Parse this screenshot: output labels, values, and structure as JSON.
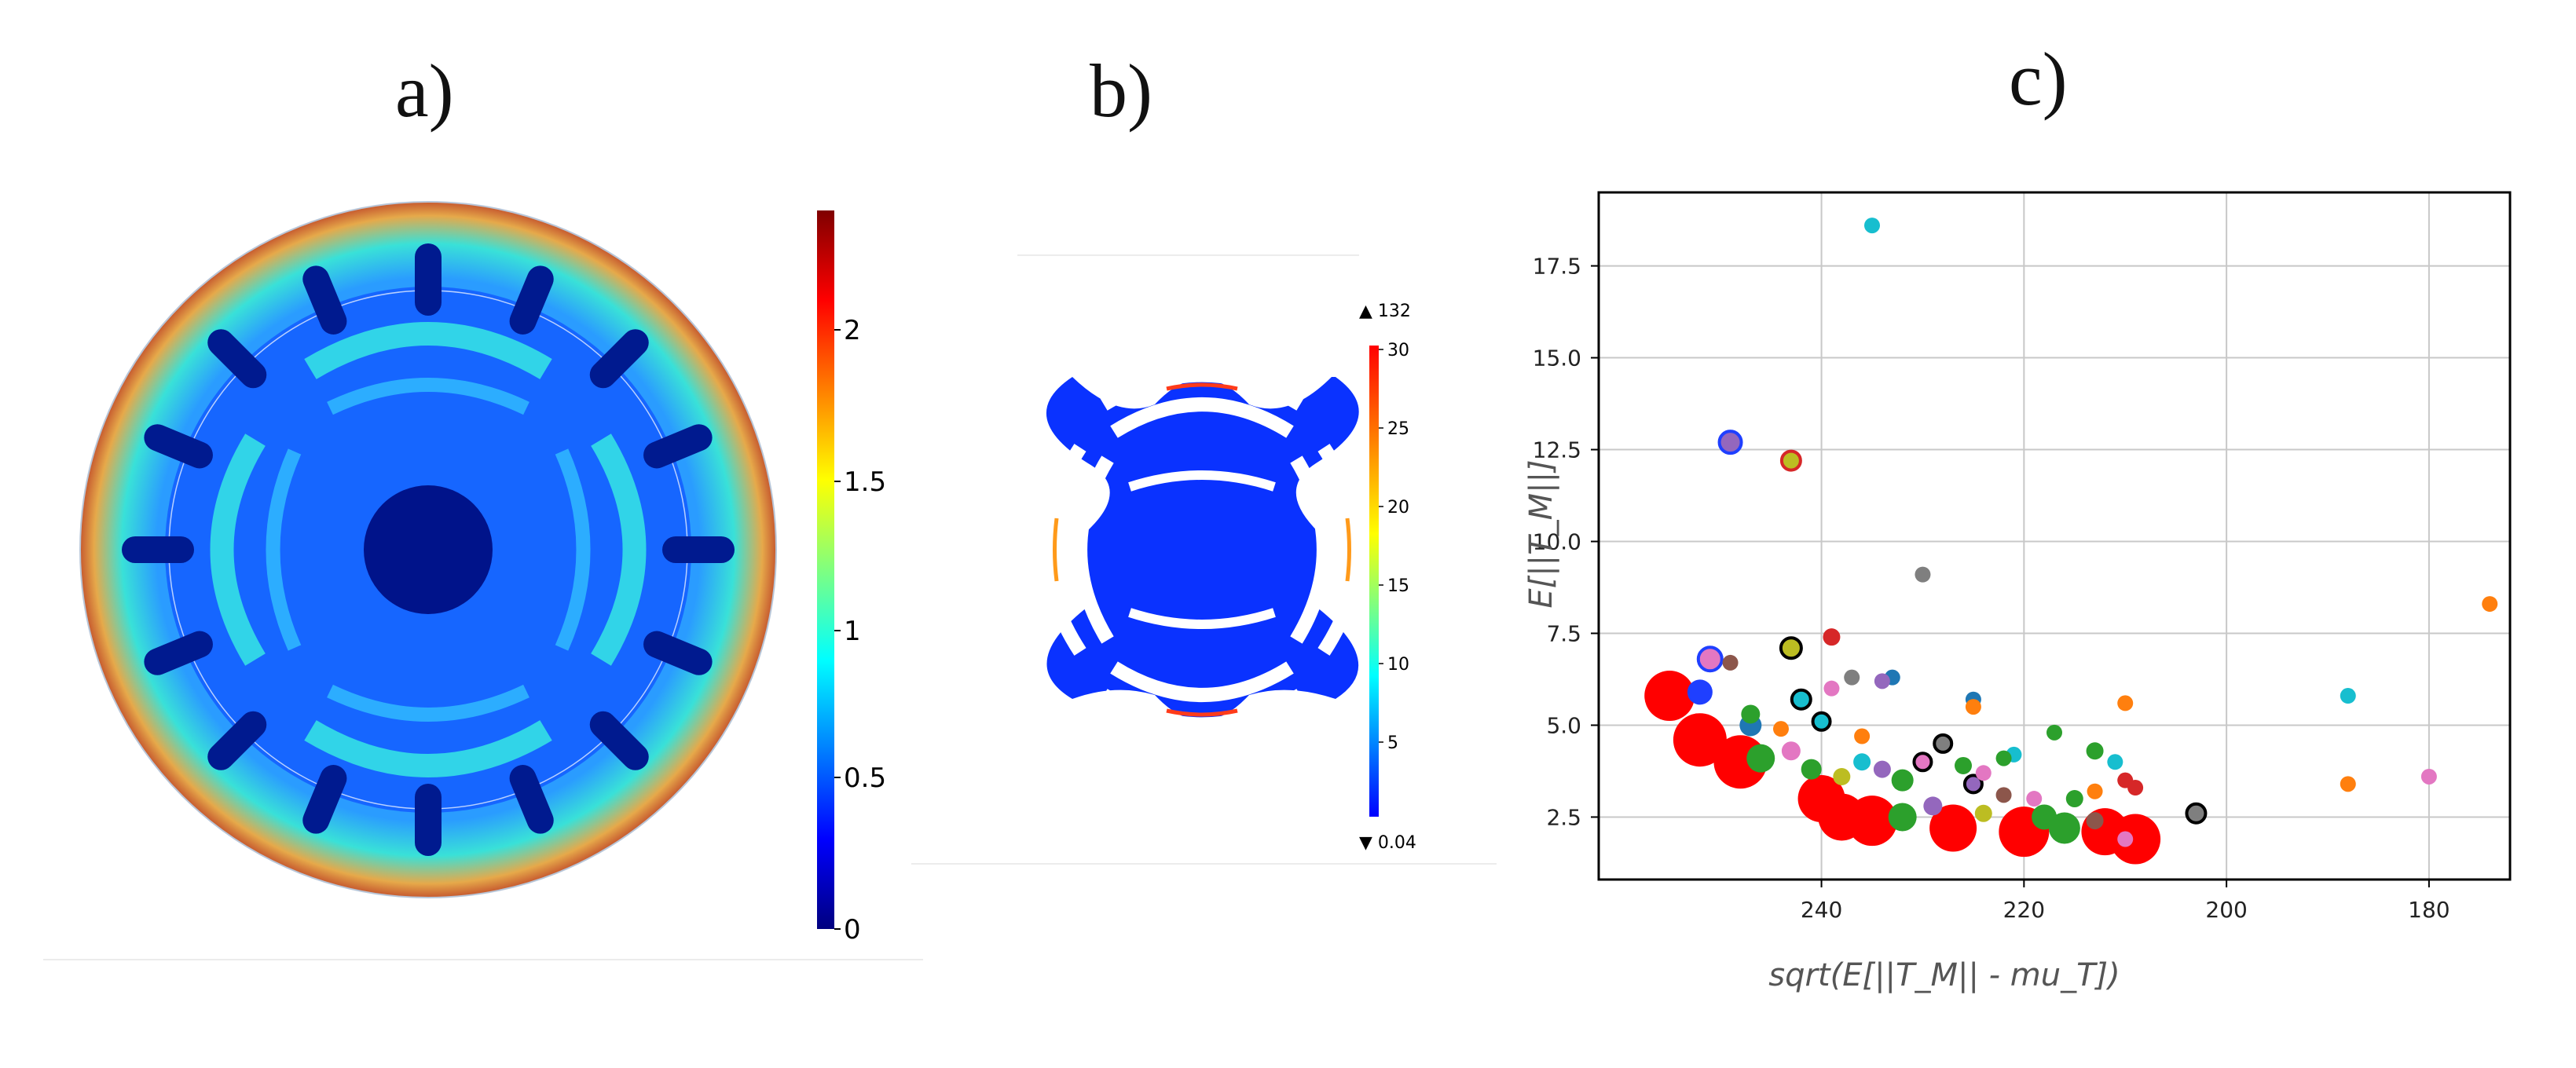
{
  "panels": {
    "a": {
      "label": "a)",
      "colorbar": {
        "ticks": [
          "0",
          "0.5",
          "1",
          "1.5",
          "2"
        ]
      }
    },
    "b": {
      "label": "b)",
      "colorbar": {
        "ticks": [
          "5",
          "10",
          "15",
          "20",
          "25",
          "30"
        ],
        "max_marker": "▲ 132",
        "min_marker": "▼ 0.04"
      }
    },
    "c": {
      "label": "c)"
    }
  },
  "chart_data": {
    "type": "scatter",
    "title": "",
    "xlabel": "sqrt(E[||T_M|| - mu_T])",
    "ylabel": "E[||T_M||]",
    "xlim": [
      262,
      172
    ],
    "ylim": [
      0.8,
      19.5
    ],
    "x_ticks": [
      240,
      220,
      200,
      180
    ],
    "y_ticks": [
      2.5,
      5.0,
      7.5,
      10.0,
      12.5,
      15.0,
      17.5
    ],
    "x_tick_labels": [
      "240",
      "220",
      "200",
      "180"
    ],
    "y_tick_labels": [
      "2.5",
      "5.0",
      "7.5",
      "10.0",
      "12.5",
      "15.0",
      "17.5"
    ],
    "grid": true,
    "points": [
      {
        "x": 235,
        "y": 18.6,
        "color": "#17becf",
        "size": 1
      },
      {
        "x": 249,
        "y": 12.7,
        "color": "#9467bd",
        "size": 1.4,
        "edge": "#1f3fff"
      },
      {
        "x": 243,
        "y": 12.2,
        "color": "#bcbd22",
        "size": 1.2,
        "edge": "#d62728"
      },
      {
        "x": 230,
        "y": 9.1,
        "color": "#7f7f7f",
        "size": 1
      },
      {
        "x": 174,
        "y": 8.3,
        "color": "#ff7f0e",
        "size": 1
      },
      {
        "x": 243,
        "y": 7.1,
        "color": "#bcbd22",
        "size": 1.3,
        "edge": "#000000"
      },
      {
        "x": 239,
        "y": 7.4,
        "color": "#d62728",
        "size": 1.1
      },
      {
        "x": 251,
        "y": 6.8,
        "color": "#e377c2",
        "size": 1.5,
        "edge": "#1f3fff"
      },
      {
        "x": 249,
        "y": 6.7,
        "color": "#8c564b",
        "size": 1
      },
      {
        "x": 237,
        "y": 6.3,
        "color": "#7f7f7f",
        "size": 1
      },
      {
        "x": 233,
        "y": 6.3,
        "color": "#1f77b4",
        "size": 1
      },
      {
        "x": 234,
        "y": 6.2,
        "color": "#9467bd",
        "size": 1
      },
      {
        "x": 225,
        "y": 5.7,
        "color": "#1f77b4",
        "size": 1
      },
      {
        "x": 225,
        "y": 5.5,
        "color": "#ff7f0e",
        "size": 1
      },
      {
        "x": 210,
        "y": 5.6,
        "color": "#ff7f0e",
        "size": 1
      },
      {
        "x": 188,
        "y": 5.8,
        "color": "#17becf",
        "size": 1
      },
      {
        "x": 255,
        "y": 5.8,
        "color": "#ff0000",
        "size": 3.2
      },
      {
        "x": 252,
        "y": 5.9,
        "color": "#1f3fff",
        "size": 1.6
      },
      {
        "x": 247,
        "y": 5.3,
        "color": "#2ca02c",
        "size": 1.2
      },
      {
        "x": 242,
        "y": 5.7,
        "color": "#17becf",
        "size": 1.2,
        "edge": "#000000"
      },
      {
        "x": 240,
        "y": 5.1,
        "color": "#17becf",
        "size": 1.1,
        "edge": "#000000"
      },
      {
        "x": 239,
        "y": 6.0,
        "color": "#e377c2",
        "size": 1
      },
      {
        "x": 236,
        "y": 4.7,
        "color": "#ff7f0e",
        "size": 1
      },
      {
        "x": 217,
        "y": 4.8,
        "color": "#2ca02c",
        "size": 1
      },
      {
        "x": 213,
        "y": 4.3,
        "color": "#2ca02c",
        "size": 1.1
      },
      {
        "x": 211,
        "y": 4.0,
        "color": "#17becf",
        "size": 1
      },
      {
        "x": 221,
        "y": 4.2,
        "color": "#17becf",
        "size": 1
      },
      {
        "x": 252,
        "y": 4.6,
        "color": "#ff0000",
        "size": 3.4
      },
      {
        "x": 248,
        "y": 4.0,
        "color": "#ff0000",
        "size": 3.4
      },
      {
        "x": 246,
        "y": 4.1,
        "color": "#2ca02c",
        "size": 1.8
      },
      {
        "x": 243,
        "y": 4.3,
        "color": "#e377c2",
        "size": 1.2
      },
      {
        "x": 241,
        "y": 3.8,
        "color": "#2ca02c",
        "size": 1.3
      },
      {
        "x": 238,
        "y": 3.6,
        "color": "#bcbd22",
        "size": 1.1
      },
      {
        "x": 234,
        "y": 3.8,
        "color": "#9467bd",
        "size": 1.1
      },
      {
        "x": 232,
        "y": 3.5,
        "color": "#2ca02c",
        "size": 1.4
      },
      {
        "x": 230,
        "y": 4.0,
        "color": "#e377c2",
        "size": 1.1,
        "edge": "#000000"
      },
      {
        "x": 226,
        "y": 3.9,
        "color": "#2ca02c",
        "size": 1.1
      },
      {
        "x": 224,
        "y": 3.7,
        "color": "#e377c2",
        "size": 1
      },
      {
        "x": 225,
        "y": 3.4,
        "color": "#9467bd",
        "size": 1.1,
        "edge": "#000000"
      },
      {
        "x": 222,
        "y": 3.1,
        "color": "#8c564b",
        "size": 1
      },
      {
        "x": 219,
        "y": 3.0,
        "color": "#e377c2",
        "size": 1
      },
      {
        "x": 215,
        "y": 3.0,
        "color": "#2ca02c",
        "size": 1.1
      },
      {
        "x": 213,
        "y": 3.2,
        "color": "#ff7f0e",
        "size": 1
      },
      {
        "x": 210,
        "y": 3.5,
        "color": "#d62728",
        "size": 1
      },
      {
        "x": 209,
        "y": 3.3,
        "color": "#d62728",
        "size": 1
      },
      {
        "x": 188,
        "y": 3.4,
        "color": "#ff7f0e",
        "size": 1
      },
      {
        "x": 180,
        "y": 3.6,
        "color": "#e377c2",
        "size": 1
      },
      {
        "x": 240,
        "y": 3.0,
        "color": "#ff0000",
        "size": 3.0
      },
      {
        "x": 238,
        "y": 2.5,
        "color": "#ff0000",
        "size": 3.0
      },
      {
        "x": 235,
        "y": 2.4,
        "color": "#ff0000",
        "size": 3.2
      },
      {
        "x": 232,
        "y": 2.5,
        "color": "#2ca02c",
        "size": 1.8
      },
      {
        "x": 229,
        "y": 2.8,
        "color": "#9467bd",
        "size": 1.2
      },
      {
        "x": 227,
        "y": 2.2,
        "color": "#ff0000",
        "size": 3.0
      },
      {
        "x": 224,
        "y": 2.6,
        "color": "#bcbd22",
        "size": 1.1
      },
      {
        "x": 220,
        "y": 2.1,
        "color": "#ff0000",
        "size": 3.2
      },
      {
        "x": 218,
        "y": 2.5,
        "color": "#2ca02c",
        "size": 1.6
      },
      {
        "x": 216,
        "y": 2.2,
        "color": "#2ca02c",
        "size": 2.0
      },
      {
        "x": 213,
        "y": 2.4,
        "color": "#8c564b",
        "size": 1.1
      },
      {
        "x": 212,
        "y": 2.1,
        "color": "#ff0000",
        "size": 3.0
      },
      {
        "x": 209,
        "y": 1.9,
        "color": "#ff0000",
        "size": 3.2
      },
      {
        "x": 210,
        "y": 1.9,
        "color": "#e377c2",
        "size": 1
      },
      {
        "x": 203,
        "y": 2.6,
        "color": "#7f7f7f",
        "size": 1.2,
        "edge": "#000000"
      },
      {
        "x": 247,
        "y": 5.0,
        "color": "#1f77b4",
        "size": 1.4
      },
      {
        "x": 244,
        "y": 4.9,
        "color": "#ff7f0e",
        "size": 1
      },
      {
        "x": 236,
        "y": 4.0,
        "color": "#17becf",
        "size": 1.1
      },
      {
        "x": 228,
        "y": 4.5,
        "color": "#7f7f7f",
        "size": 1.1,
        "edge": "#000000"
      },
      {
        "x": 222,
        "y": 4.1,
        "color": "#2ca02c",
        "size": 1
      }
    ]
  }
}
